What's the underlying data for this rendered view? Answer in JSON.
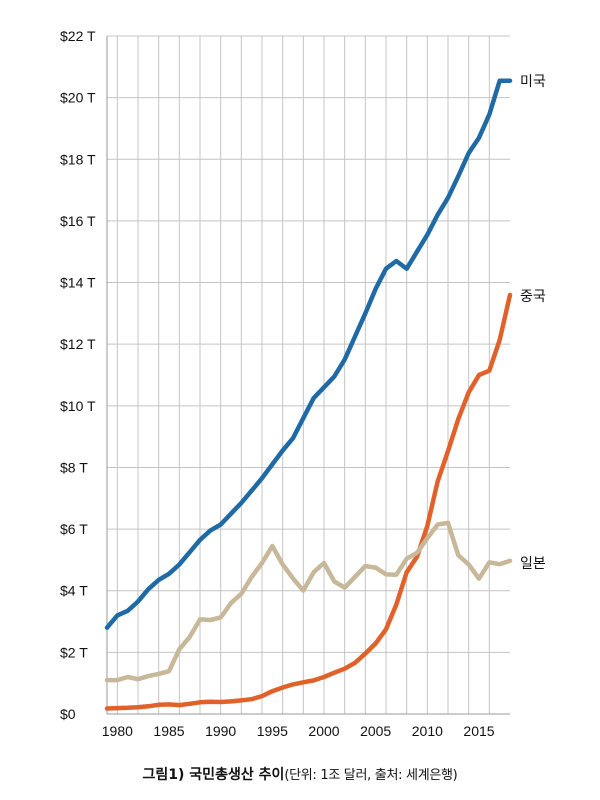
{
  "chart_data": {
    "type": "line",
    "ylim": [
      0,
      22
    ],
    "xlim": [
      1979,
      2018
    ],
    "y_ticks": [
      0,
      2,
      4,
      6,
      8,
      10,
      12,
      14,
      16,
      18,
      20,
      22
    ],
    "y_tick_labels": [
      "$0",
      "$2 T",
      "$4 T",
      "$6 T",
      "$8 T",
      "$10 T",
      "$12 T",
      "$14 T",
      "$16 T",
      "$18 T",
      "$20 T",
      "$22 T"
    ],
    "x_tick_labels": [
      "1980",
      "1985",
      "1990",
      "1995",
      "2000",
      "2005",
      "2010",
      "2015"
    ],
    "x_ticks": [
      1980,
      1985,
      1990,
      1995,
      2000,
      2005,
      2010,
      2015
    ],
    "grid": true,
    "x": [
      1979,
      1980,
      1981,
      1982,
      1983,
      1984,
      1985,
      1986,
      1987,
      1988,
      1989,
      1990,
      1991,
      1992,
      1993,
      1994,
      1995,
      1996,
      1997,
      1998,
      1999,
      2000,
      2001,
      2002,
      2003,
      2004,
      2005,
      2006,
      2007,
      2008,
      2009,
      2010,
      2011,
      2012,
      2013,
      2014,
      2015,
      2016,
      2017,
      2018
    ],
    "series": [
      {
        "name": "미국",
        "color": "#1f6aa5",
        "values": [
          2.8,
          3.2,
          3.35,
          3.65,
          4.05,
          4.35,
          4.55,
          4.85,
          5.25,
          5.65,
          5.95,
          6.15,
          6.5,
          6.85,
          7.25,
          7.65,
          8.1,
          8.55,
          8.95,
          9.6,
          10.25,
          10.6,
          10.95,
          11.5,
          12.25,
          13.0,
          13.8,
          14.45,
          14.7,
          14.45,
          15.0,
          15.55,
          16.2,
          16.75,
          17.45,
          18.2,
          18.7,
          19.45,
          20.55,
          20.55
        ]
      },
      {
        "name": "중국",
        "color": "#e0622a",
        "values": [
          0.18,
          0.19,
          0.2,
          0.22,
          0.25,
          0.3,
          0.31,
          0.29,
          0.33,
          0.38,
          0.4,
          0.39,
          0.41,
          0.44,
          0.48,
          0.58,
          0.74,
          0.86,
          0.96,
          1.03,
          1.09,
          1.2,
          1.34,
          1.47,
          1.66,
          1.96,
          2.29,
          2.75,
          3.55,
          4.6,
          5.1,
          6.1,
          7.55,
          8.53,
          9.57,
          10.44,
          11.0,
          11.14,
          12.14,
          13.6
        ]
      },
      {
        "name": "일본",
        "color": "#c8b89a",
        "values": [
          1.1,
          1.1,
          1.2,
          1.13,
          1.23,
          1.3,
          1.39,
          2.1,
          2.5,
          3.07,
          3.05,
          3.13,
          3.6,
          3.9,
          4.45,
          4.9,
          5.45,
          4.85,
          4.4,
          4.0,
          4.6,
          4.9,
          4.3,
          4.1,
          4.45,
          4.8,
          4.75,
          4.53,
          4.52,
          5.04,
          5.23,
          5.7,
          6.15,
          6.2,
          5.15,
          4.85,
          4.39,
          4.92,
          4.86,
          4.97
        ]
      }
    ]
  },
  "caption": {
    "title": "그림1) 국민총생산 추이",
    "note": "(단위: 1조 달러, 출처: 세계은행)"
  }
}
